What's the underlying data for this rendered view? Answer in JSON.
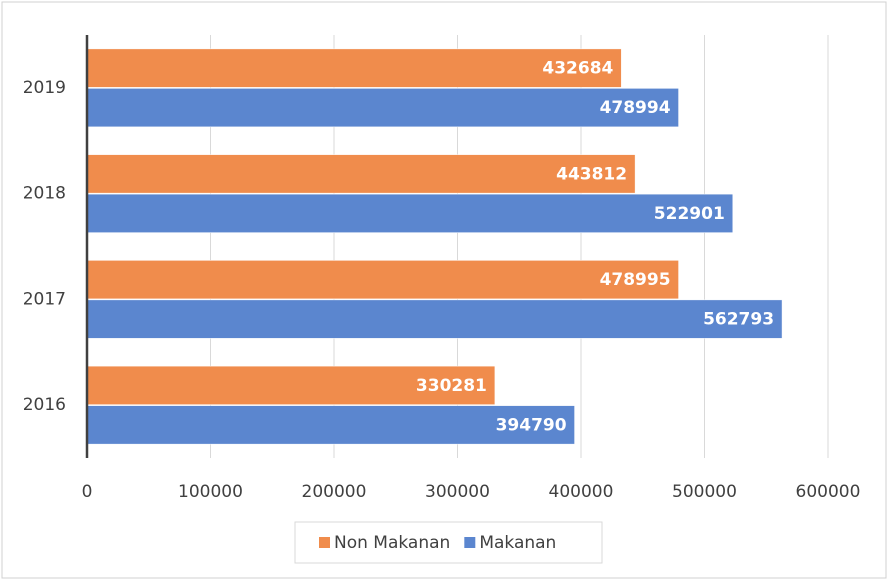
{
  "chart_data": {
    "type": "bar",
    "orientation": "horizontal",
    "categories": [
      "2016",
      "2017",
      "2018",
      "2019"
    ],
    "series": [
      {
        "name": "Non Makanan",
        "color": "#f08c4c",
        "values": [
          330281,
          478995,
          443812,
          432684
        ]
      },
      {
        "name": "Makanan",
        "color": "#5b86cf",
        "values": [
          394790,
          562793,
          522901,
          478994
        ]
      }
    ],
    "xlim": [
      0,
      600000
    ],
    "xticks": [
      0,
      100000,
      200000,
      300000,
      400000,
      500000,
      600000
    ],
    "grid": true,
    "legend": "bottom"
  }
}
